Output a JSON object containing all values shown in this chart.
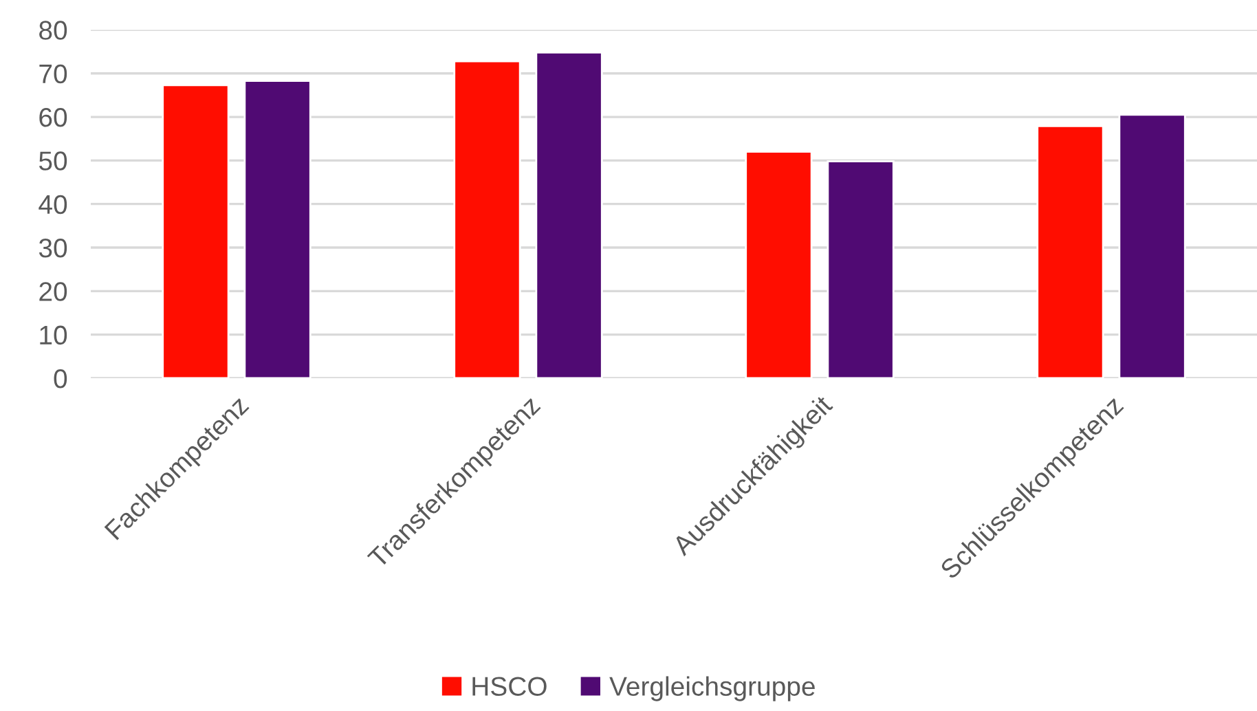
{
  "chart_data": {
    "type": "bar",
    "categories": [
      "Fachkompetenz",
      "Transferkompetenz",
      "Ausdruckfähigkeit",
      "Schlüsselkompetenz"
    ],
    "series": [
      {
        "name": "HSCO",
        "color": "#ff0d00",
        "values": [
          67.3,
          72.8,
          52.0,
          57.9
        ]
      },
      {
        "name": "Vergleichsgruppe",
        "color": "#500a73",
        "values": [
          68.3,
          74.8,
          49.8,
          60.5
        ]
      }
    ],
    "ylim": [
      0,
      80
    ],
    "yticks": [
      0,
      10,
      20,
      30,
      40,
      50,
      60,
      70,
      80
    ],
    "grid": "y",
    "legend": "bottom"
  }
}
